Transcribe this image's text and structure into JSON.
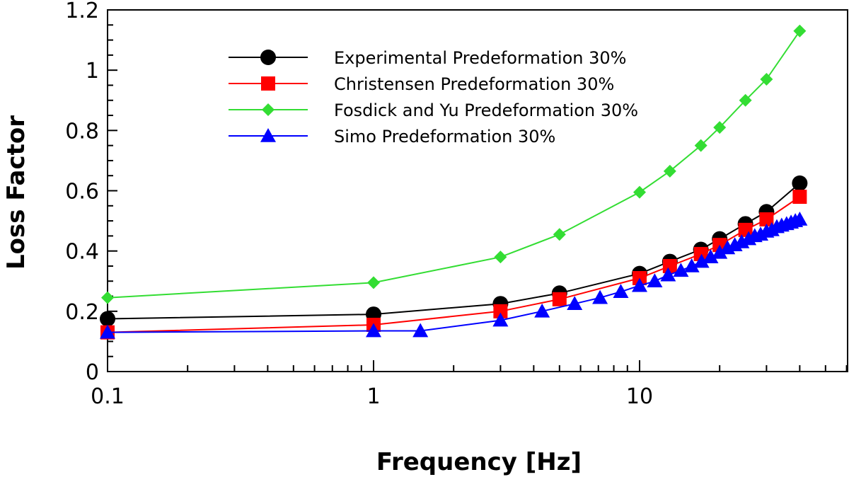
{
  "chart_data": {
    "type": "line",
    "xlabel": "Frequency [Hz]",
    "ylabel": "Loss Factor",
    "xscale": "log",
    "xlim": [
      0.1,
      60
    ],
    "ylim": [
      0,
      1.2
    ],
    "x_ticks": [
      0.1,
      1,
      10
    ],
    "x_tick_labels": [
      "0.1",
      "1",
      "10"
    ],
    "y_ticks": [
      0,
      0.2,
      0.4,
      0.6,
      0.8,
      1,
      1.2
    ],
    "y_tick_labels": [
      "0",
      "0.2",
      "0.4",
      "0.6",
      "0.8",
      "1",
      "1.2"
    ],
    "grid": false,
    "legend_position": "top-center",
    "series": [
      {
        "name": "Experimental Predeformation 30%",
        "color": "#000000",
        "marker": "circle",
        "x": [
          0.1,
          1,
          3,
          5,
          10,
          13,
          17,
          20,
          25,
          30,
          40
        ],
        "y": [
          0.175,
          0.19,
          0.225,
          0.26,
          0.325,
          0.365,
          0.405,
          0.44,
          0.49,
          0.53,
          0.625
        ]
      },
      {
        "name": "Christensen Predeformation 30%",
        "color": "#ff0000",
        "marker": "square",
        "x": [
          0.1,
          1,
          3,
          5,
          10,
          13,
          17,
          20,
          25,
          30,
          40
        ],
        "y": [
          0.13,
          0.155,
          0.2,
          0.24,
          0.31,
          0.35,
          0.39,
          0.42,
          0.47,
          0.505,
          0.58
        ]
      },
      {
        "name": "Fosdick and Yu Predeformation 30%",
        "color": "#33dd33",
        "marker": "diamond",
        "x": [
          0.1,
          1,
          3,
          5,
          10,
          13,
          17,
          20,
          25,
          30,
          40
        ],
        "y": [
          0.245,
          0.295,
          0.38,
          0.455,
          0.595,
          0.665,
          0.75,
          0.81,
          0.9,
          0.97,
          1.13
        ]
      },
      {
        "name": "Simo Predeformation 30%",
        "color": "#0000ff",
        "marker": "triangle",
        "x": [
          0.1,
          1,
          1.5,
          3,
          4.3,
          5.7,
          7.1,
          8.5,
          10,
          11.4,
          12.8,
          14.3,
          15.7,
          17.1,
          18.5,
          20,
          21.4,
          22.8,
          24.2,
          25.7,
          27.1,
          28.5,
          30,
          31.4,
          32.8,
          34.2,
          35.7,
          37.1,
          38.5,
          40
        ],
        "y": [
          0.13,
          0.135,
          0.135,
          0.17,
          0.2,
          0.225,
          0.245,
          0.265,
          0.285,
          0.3,
          0.32,
          0.335,
          0.35,
          0.365,
          0.38,
          0.395,
          0.41,
          0.42,
          0.43,
          0.44,
          0.45,
          0.455,
          0.465,
          0.47,
          0.48,
          0.485,
          0.49,
          0.495,
          0.5,
          0.505
        ]
      }
    ]
  }
}
